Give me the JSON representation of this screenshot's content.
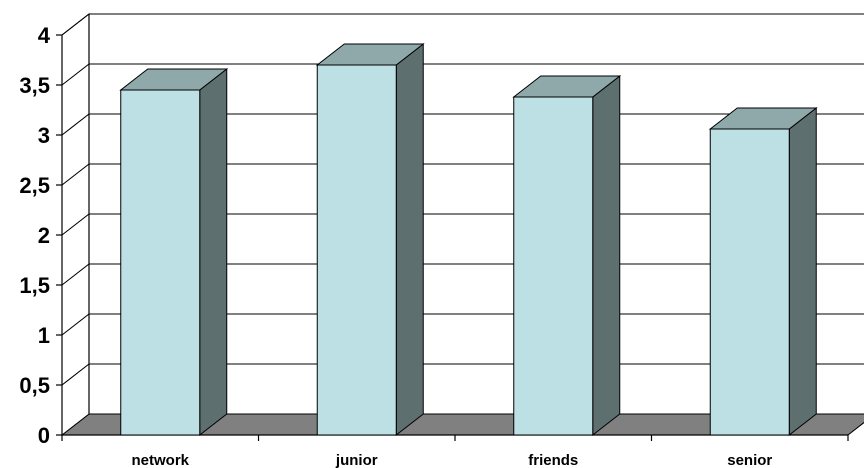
{
  "chart_data": {
    "type": "bar",
    "style": "3d-column",
    "categories": [
      "network",
      "junior",
      "friends",
      "senior"
    ],
    "values": [
      3.45,
      3.7,
      3.38,
      3.06
    ],
    "ylim": [
      0,
      4
    ],
    "yticks": [
      0,
      0.5,
      1,
      1.5,
      2,
      2.5,
      3,
      3.5,
      4
    ],
    "ytick_labels": [
      "0",
      "0,5",
      "1",
      "1,5",
      "2",
      "2,5",
      "3",
      "3,5",
      "4"
    ],
    "title": "",
    "xlabel": "",
    "ylabel": "",
    "grid": true,
    "legend": false,
    "colors": {
      "bar_front": "#bde0e4",
      "bar_top": "#8fa9aa",
      "bar_side": "#5e6f6f",
      "floor": "#808080",
      "wall_back": "#ffffff",
      "gridline": "#000000"
    }
  }
}
